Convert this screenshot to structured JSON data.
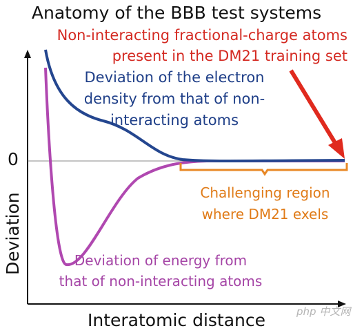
{
  "title": "Anatomy of the BBB test systems",
  "red_note": [
    "Non-interacting fractional-charge atoms",
    "present in the DM21 training set"
  ],
  "blue_note": [
    "Deviation of the electron",
    "density from that of non-",
    "interacting atoms"
  ],
  "orange_note": [
    "Challenging region",
    "where DM21 exels"
  ],
  "purple_note": [
    "Deviation of energy from",
    "that of non-interacting atoms"
  ],
  "axes": {
    "x_label": "Interatomic distance",
    "y_label": "Deviation",
    "zero_label": "0"
  },
  "watermark": "php 中文网",
  "colors": {
    "blue_curve": "#24468f",
    "purple_curve": "#b048b0",
    "red_arrow": "#e02a1e",
    "orange_brace": "#e88826",
    "axis": "#111111",
    "zero_line": "#888888"
  }
}
